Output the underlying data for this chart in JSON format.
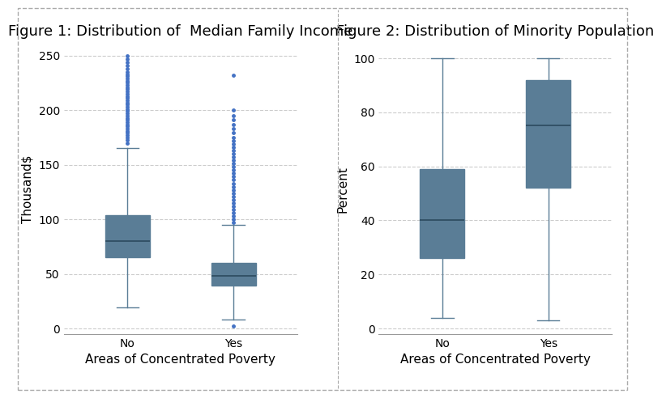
{
  "fig1": {
    "title": "Figure 1: Distribution of  Median Family Income",
    "ylabel": "Thousand$",
    "xlabel": "Areas of Concentrated Poverty",
    "ylim": [
      -5,
      260
    ],
    "yticks": [
      0,
      50,
      100,
      150,
      200,
      250
    ],
    "categories": [
      "No",
      "Yes"
    ],
    "box_stats": [
      {
        "label": "No",
        "q1": 65,
        "median": 80,
        "q3": 104,
        "whislo": 19,
        "whishi": 165,
        "fliers_above": [
          170,
          173,
          175,
          177,
          179,
          181,
          183,
          185,
          187,
          189,
          191,
          193,
          195,
          197,
          199,
          201,
          203,
          205,
          207,
          209,
          211,
          213,
          215,
          217,
          219,
          221,
          223,
          225,
          227,
          229,
          231,
          233,
          235,
          238,
          241,
          244,
          247,
          250
        ],
        "fliers_below": []
      },
      {
        "label": "Yes",
        "q1": 39,
        "median": 48,
        "q3": 60,
        "whislo": 8,
        "whishi": 95,
        "fliers_above": [
          97,
          100,
          103,
          106,
          109,
          112,
          115,
          118,
          121,
          124,
          127,
          130,
          133,
          136,
          139,
          142,
          145,
          148,
          151,
          154,
          157,
          160,
          163,
          166,
          169,
          172,
          175,
          179,
          183,
          187,
          191,
          195,
          200,
          232
        ],
        "fliers_below": [
          2
        ]
      }
    ],
    "box_color": "#7a9ab0",
    "whisker_color": "#5a7d96",
    "flier_color": "#4472C4",
    "median_color": "#2c4a5e"
  },
  "fig2": {
    "title": "Figure 2: Distribution of Minority Population",
    "ylabel": "Percent",
    "xlabel": "Areas of Concentrated Poverty",
    "ylim": [
      -2,
      105
    ],
    "yticks": [
      0,
      20,
      40,
      60,
      80,
      100
    ],
    "categories": [
      "No",
      "Yes"
    ],
    "box_stats": [
      {
        "label": "No",
        "q1": 26,
        "median": 40,
        "q3": 59,
        "whislo": 4,
        "whishi": 100,
        "fliers_above": [],
        "fliers_below": []
      },
      {
        "label": "Yes",
        "q1": 52,
        "median": 75,
        "q3": 92,
        "whislo": 3,
        "whishi": 100,
        "fliers_above": [],
        "fliers_below": []
      }
    ],
    "box_color": "#7a9ab0",
    "whisker_color": "#5a7d96",
    "flier_color": "#4472C4",
    "median_color": "#2c4a5e"
  },
  "background_color": "#ffffff",
  "grid_color": "#cccccc",
  "border_color": "#aaaaaa",
  "divider_color": "#aaaaaa",
  "title_fontsize": 13,
  "label_fontsize": 11,
  "tick_fontsize": 10
}
